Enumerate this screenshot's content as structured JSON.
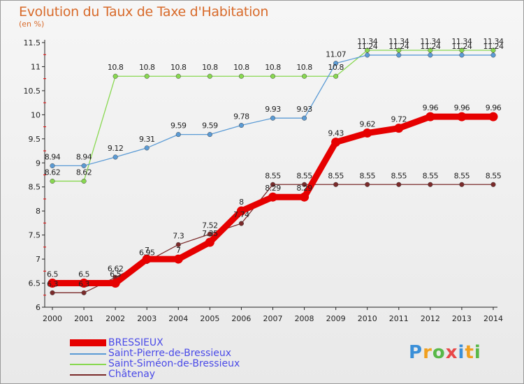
{
  "chart_data": {
    "type": "line",
    "title": "Evolution du Taux de Taxe d'Habitation",
    "subtitle": "(en %)",
    "x": [
      2000,
      2001,
      2002,
      2003,
      2004,
      2005,
      2006,
      2007,
      2008,
      2009,
      2010,
      2011,
      2012,
      2013,
      2014
    ],
    "ylim": [
      6,
      11.5
    ],
    "yticks": [
      "6",
      "6.5",
      "7",
      "7.5",
      "8",
      "8.5",
      "9",
      "9.5",
      "10",
      "10.5",
      "11",
      "11.5"
    ],
    "grid": false,
    "legend_position": "bottom-left",
    "series": [
      {
        "name": "BRESSIEUX",
        "color": "#e60000",
        "values": [
          6.5,
          6.5,
          6.5,
          7.0,
          7.0,
          7.35,
          8.0,
          8.29,
          8.29,
          9.43,
          9.62,
          9.72,
          9.96,
          9.96,
          9.96
        ]
      },
      {
        "name": "Saint-Pierre-de-Bressieux",
        "color": "#5b9bd5",
        "values": [
          8.94,
          8.94,
          9.12,
          9.31,
          9.59,
          9.59,
          9.78,
          9.93,
          9.93,
          11.07,
          11.24,
          11.24,
          11.24,
          11.24,
          11.24
        ]
      },
      {
        "name": "Saint-Siméon-de-Bressieux",
        "color": "#88d850",
        "values": [
          8.62,
          8.62,
          10.8,
          10.8,
          10.8,
          10.8,
          10.8,
          10.8,
          10.8,
          10.8,
          11.34,
          11.34,
          11.34,
          11.34,
          11.34
        ]
      },
      {
        "name": "Châtenay",
        "color": "#7a2a2a",
        "values": [
          6.3,
          6.3,
          6.62,
          6.95,
          7.3,
          7.52,
          7.74,
          8.55,
          8.55,
          8.55,
          8.55,
          8.55,
          8.55,
          8.55,
          8.55
        ]
      }
    ]
  },
  "logo_text": "Proxiti"
}
